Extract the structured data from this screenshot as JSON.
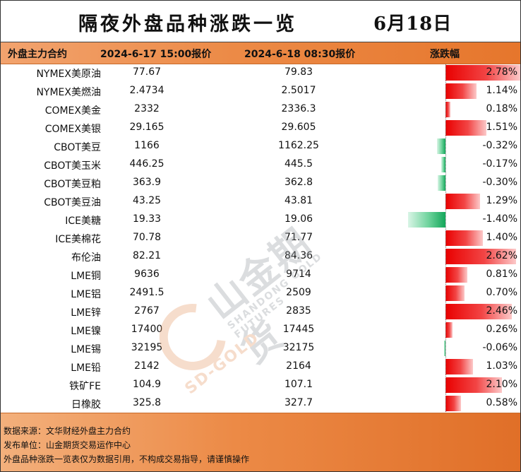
{
  "title": "隔夜外盘品种涨跌一览",
  "date": "6月18日",
  "headers": {
    "name": "外盘主力合约",
    "prev": "2024-6-17 15:00报价",
    "cur": "2024-6-18 08:30报价",
    "change": "涨跌幅"
  },
  "colors": {
    "up": "#e90000",
    "down": "#13a65a",
    "header": "#ec8a46"
  },
  "rows": [
    {
      "name": "NYMEX美原油",
      "prev": "77.67",
      "cur": "79.83",
      "change": "2.78%",
      "pct": 2.78
    },
    {
      "name": "NYMEX美燃油",
      "prev": "2.4734",
      "cur": "2.5017",
      "change": "1.14%",
      "pct": 1.14
    },
    {
      "name": "COMEX美金",
      "prev": "2332",
      "cur": "2336.3",
      "change": "0.18%",
      "pct": 0.18
    },
    {
      "name": "COMEX美银",
      "prev": "29.165",
      "cur": "29.605",
      "change": "1.51%",
      "pct": 1.51
    },
    {
      "name": "CBOT美豆",
      "prev": "1166",
      "cur": "1162.25",
      "change": "-0.32%",
      "pct": -0.32
    },
    {
      "name": "CBOT美玉米",
      "prev": "446.25",
      "cur": "445.5",
      "change": "-0.17%",
      "pct": -0.17
    },
    {
      "name": "CBOT美豆粕",
      "prev": "363.9",
      "cur": "362.8",
      "change": "-0.30%",
      "pct": -0.3
    },
    {
      "name": "CBOT美豆油",
      "prev": "43.25",
      "cur": "43.81",
      "change": "1.29%",
      "pct": 1.29
    },
    {
      "name": "ICE美糖",
      "prev": "19.33",
      "cur": "19.06",
      "change": "-1.40%",
      "pct": -1.4
    },
    {
      "name": "ICE美棉花",
      "prev": "70.78",
      "cur": "71.77",
      "change": "1.40%",
      "pct": 1.4
    },
    {
      "name": "布伦油",
      "prev": "82.21",
      "cur": "84.36",
      "change": "2.62%",
      "pct": 2.62
    },
    {
      "name": "LME铜",
      "prev": "9636",
      "cur": "9714",
      "change": "0.81%",
      "pct": 0.81
    },
    {
      "name": "LME铝",
      "prev": "2491.5",
      "cur": "2509",
      "change": "0.70%",
      "pct": 0.7
    },
    {
      "name": "LME锌",
      "prev": "2767",
      "cur": "2835",
      "change": "2.46%",
      "pct": 2.46
    },
    {
      "name": "LME镍",
      "prev": "17400",
      "cur": "17445",
      "change": "0.26%",
      "pct": 0.26
    },
    {
      "name": "LME锡",
      "prev": "32195",
      "cur": "32175",
      "change": "-0.06%",
      "pct": -0.06
    },
    {
      "name": "LME铅",
      "prev": "2142",
      "cur": "2164",
      "change": "1.03%",
      "pct": 1.03
    },
    {
      "name": "铁矿FE",
      "prev": "104.9",
      "cur": "107.1",
      "change": "2.10%",
      "pct": 2.1
    },
    {
      "name": "日橡胶",
      "prev": "325.8",
      "cur": "327.7",
      "change": "0.58%",
      "pct": 0.58
    }
  ],
  "footer": {
    "source": "数据来源：文华财经外盘主力合约",
    "publisher": "发布单位：山金期货交易运作中心",
    "disclaimer": "外盘品种涨跌一览表仅为数据引用，不构成交易指导，请谨慎操作"
  },
  "watermark": {
    "cn": "山金期货",
    "en": "SHANDONG GOLD FUTURES",
    "brand": "SD-GOLD"
  }
}
